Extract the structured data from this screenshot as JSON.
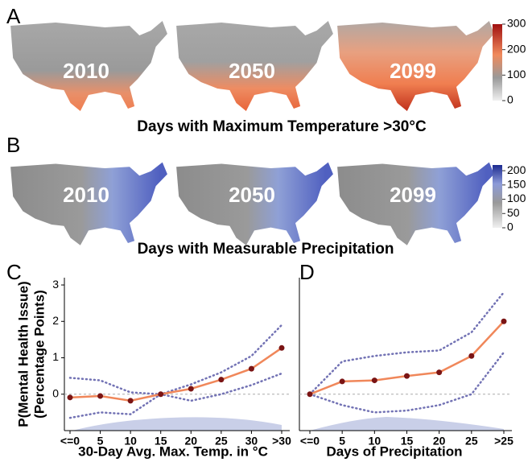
{
  "chart_data": [
    {
      "type": "map",
      "label": "A",
      "title": "Days with Maximum Temperature >30°C",
      "years": [
        "2010",
        "2050",
        "2099"
      ],
      "clim": [
        0,
        300
      ],
      "cticks": [
        0,
        100,
        200,
        300
      ]
    },
    {
      "type": "map",
      "label": "B",
      "title": "Days with Measurable Precipitation",
      "years": [
        "2010",
        "2050",
        "2099"
      ],
      "clim": [
        0,
        220
      ],
      "cticks": [
        0,
        50,
        100,
        150,
        200
      ]
    },
    {
      "type": "line",
      "label": "C",
      "ylabel": [
        "P(Mental Health Issue)",
        "(Percentage Points)"
      ],
      "xlabel": "30-Day Avg. Max. Temp. in °C",
      "categories": [
        "<=0",
        "5",
        "10",
        "15",
        "20",
        "25",
        "30",
        ">30"
      ],
      "values": [
        -0.09,
        -0.05,
        -0.18,
        0,
        0.15,
        0.4,
        0.7,
        1.27
      ],
      "ci_upper": [
        0.45,
        0.38,
        0.05,
        0,
        0.27,
        0.6,
        1.05,
        1.9
      ],
      "ci_lower": [
        -0.65,
        -0.5,
        -0.55,
        0,
        -0.18,
        0,
        0.25,
        0.57
      ],
      "ylim": [
        -1,
        3.2
      ],
      "yticks": [
        0,
        1,
        2,
        3
      ],
      "color": "#f0875a",
      "point_color": "#7a1414",
      "ci_color": "#7272b4"
    },
    {
      "type": "line",
      "label": "D",
      "xlabel": "Days of Precipitation",
      "categories": [
        "<=0",
        "5",
        "10",
        "15",
        "20",
        "25",
        ">25"
      ],
      "values": [
        0,
        0.35,
        0.38,
        0.5,
        0.6,
        1.05,
        2.0
      ],
      "ci_upper": [
        0,
        0.9,
        1.05,
        1.15,
        1.2,
        1.7,
        2.8
      ],
      "ci_lower": [
        0,
        -0.3,
        -0.5,
        -0.45,
        -0.3,
        0,
        1.15
      ],
      "ylim": [
        -1,
        3.2
      ],
      "color": "#f0875a",
      "point_color": "#7a1414",
      "ci_color": "#7272b4"
    }
  ]
}
